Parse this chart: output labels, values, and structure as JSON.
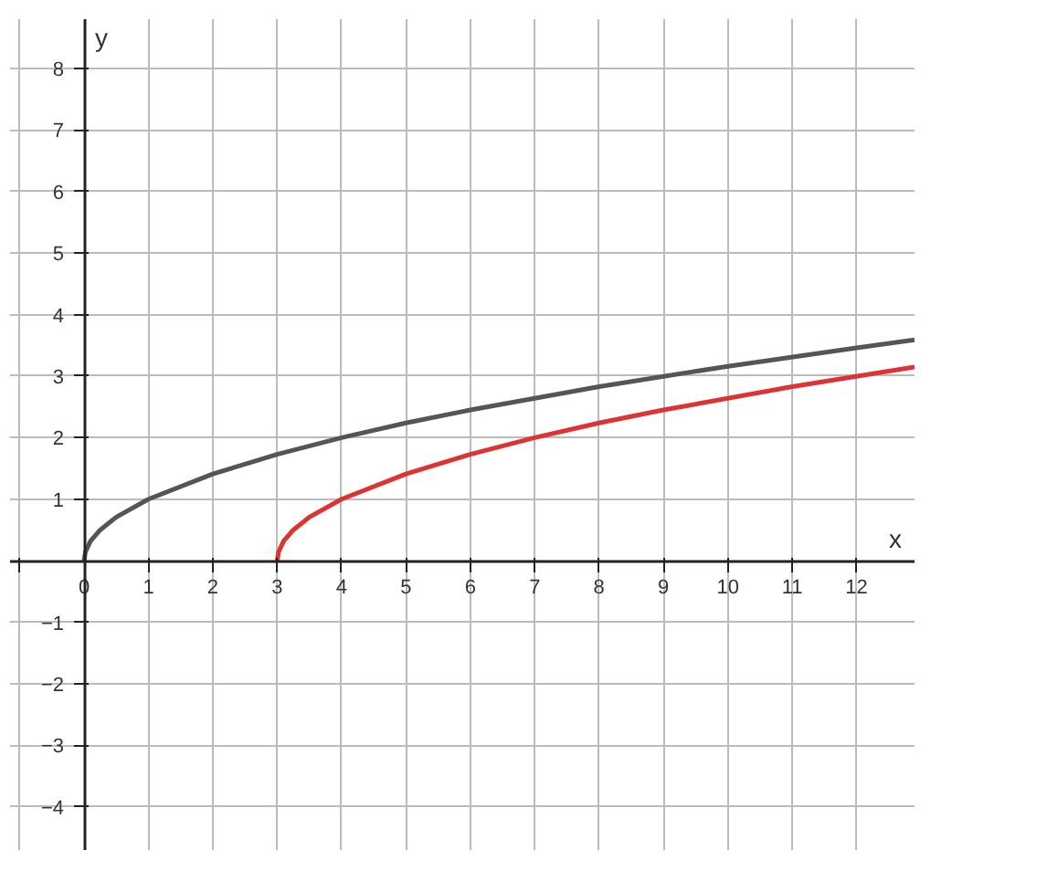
{
  "chart_data": {
    "type": "line",
    "xlabel": "x",
    "ylabel": "y",
    "xlim": [
      -1.15,
      12.9
    ],
    "ylim": [
      -4.7,
      8.8
    ],
    "xticks": [
      {
        "value": -1,
        "label": null
      },
      0,
      1,
      2,
      3,
      4,
      5,
      6,
      7,
      8,
      9,
      10,
      11,
      12
    ],
    "yticks": [
      {
        "value": -4,
        "label": "−4"
      },
      {
        "value": -3,
        "label": "−3"
      },
      {
        "value": -2,
        "label": "−2"
      },
      {
        "value": -1,
        "label": "−1"
      },
      {
        "value": 0,
        "label": null
      },
      1,
      2,
      3,
      4,
      5,
      6,
      7,
      8
    ],
    "grid": true,
    "line_style": "solid",
    "marker": "none",
    "series": [
      {
        "color": "#555555",
        "x": [
          0,
          0.02,
          0.1,
          0.25,
          0.5,
          1,
          2,
          3,
          4,
          5,
          6,
          8,
          10,
          12,
          12.9
        ],
        "values": [
          0,
          0.14,
          0.32,
          0.5,
          0.71,
          1,
          1.41,
          1.73,
          2,
          2.24,
          2.45,
          2.83,
          3.16,
          3.46,
          3.59
        ]
      },
      {
        "color": "#dd3333",
        "x": [
          3,
          3.02,
          3.1,
          3.25,
          3.5,
          4,
          5,
          6,
          7,
          8,
          9,
          11,
          12.9
        ],
        "values": [
          0,
          0.14,
          0.32,
          0.5,
          0.71,
          1,
          1.41,
          1.73,
          2,
          2.24,
          2.45,
          2.83,
          3.15
        ]
      }
    ]
  }
}
